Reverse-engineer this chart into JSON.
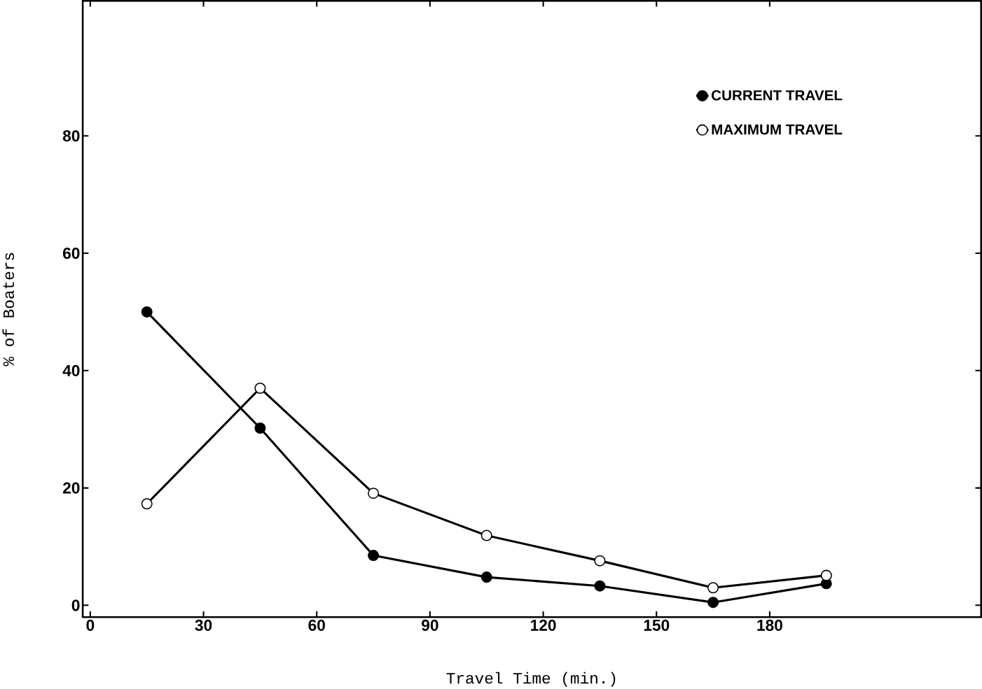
{
  "chart_data": {
    "type": "line",
    "xlabel": "Travel Time (min.)",
    "ylabel": "% of Boaters",
    "x": [
      15,
      45,
      75,
      105,
      135,
      165,
      195
    ],
    "series": [
      {
        "name": "CURRENT TRAVEL",
        "color": "#000000",
        "values": [
          50,
          30.2,
          8.5,
          4.8,
          3.3,
          0.5,
          3.7
        ]
      },
      {
        "name": "MAXIMUM TRAVEL",
        "color": "#000000",
        "values": [
          17.3,
          37,
          19.1,
          11.9,
          7.6,
          3,
          5.1
        ]
      }
    ],
    "xlim": [
      -2,
      236
    ],
    "ylim": [
      -2,
      103
    ],
    "xticks": [
      0,
      30,
      60,
      90,
      120,
      150,
      180
    ],
    "yticks": [
      0,
      20,
      40,
      60,
      80
    ],
    "grid": false,
    "legend": "top right",
    "marker": "circle",
    "line_style": "solid"
  }
}
